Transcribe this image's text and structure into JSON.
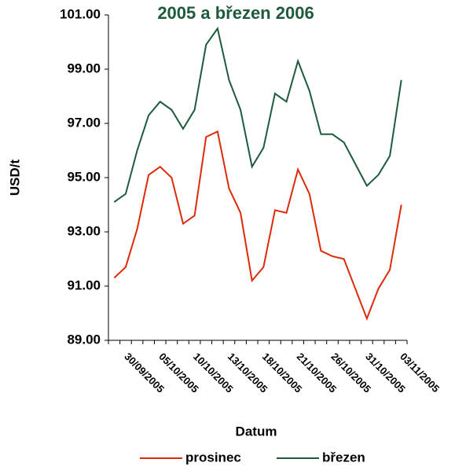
{
  "chart_data": {
    "type": "line",
    "title": "2005 a březen 2006",
    "xlabel": "Datum",
    "ylabel": "USD/t",
    "categories": [
      null,
      "30/09/2005",
      null,
      null,
      "05/10/2005",
      null,
      null,
      "10/10/2005",
      null,
      null,
      "13/10/2005",
      null,
      null,
      "18/10/2005",
      null,
      null,
      "21/10/2005",
      null,
      null,
      "26/10/2005",
      null,
      null,
      "31/10/2005",
      null,
      null,
      "03/11/2005"
    ],
    "series": [
      {
        "name": "prosinec",
        "color": "#dd2a0a",
        "values": [
          91.3,
          91.7,
          93.1,
          95.1,
          95.4,
          95.0,
          93.3,
          93.6,
          96.5,
          96.7,
          94.6,
          93.7,
          91.2,
          91.7,
          93.8,
          93.7,
          95.3,
          94.4,
          92.3,
          92.1,
          92.0,
          90.9,
          89.8,
          90.9,
          91.6,
          94.0
        ]
      },
      {
        "name": "březen",
        "color": "#1e5a3c",
        "values": [
          94.1,
          94.4,
          96.0,
          97.3,
          97.8,
          97.5,
          96.8,
          97.5,
          99.9,
          100.5,
          98.6,
          97.5,
          95.4,
          96.1,
          98.1,
          97.8,
          99.3,
          98.2,
          96.6,
          96.6,
          96.3,
          95.5,
          94.7,
          95.1,
          95.8,
          98.6
        ]
      }
    ],
    "ylim": [
      89,
      101
    ],
    "yticks": [
      {
        "value": 89,
        "label": "89.00"
      },
      {
        "value": 91,
        "label": "91.00"
      },
      {
        "value": 93,
        "label": "93.00"
      },
      {
        "value": 95,
        "label": "95.00"
      },
      {
        "value": 97,
        "label": "97.00"
      },
      {
        "value": 99,
        "label": "99.00"
      },
      {
        "value": 101,
        "label": "101.00"
      }
    ],
    "legend": "bottom"
  }
}
